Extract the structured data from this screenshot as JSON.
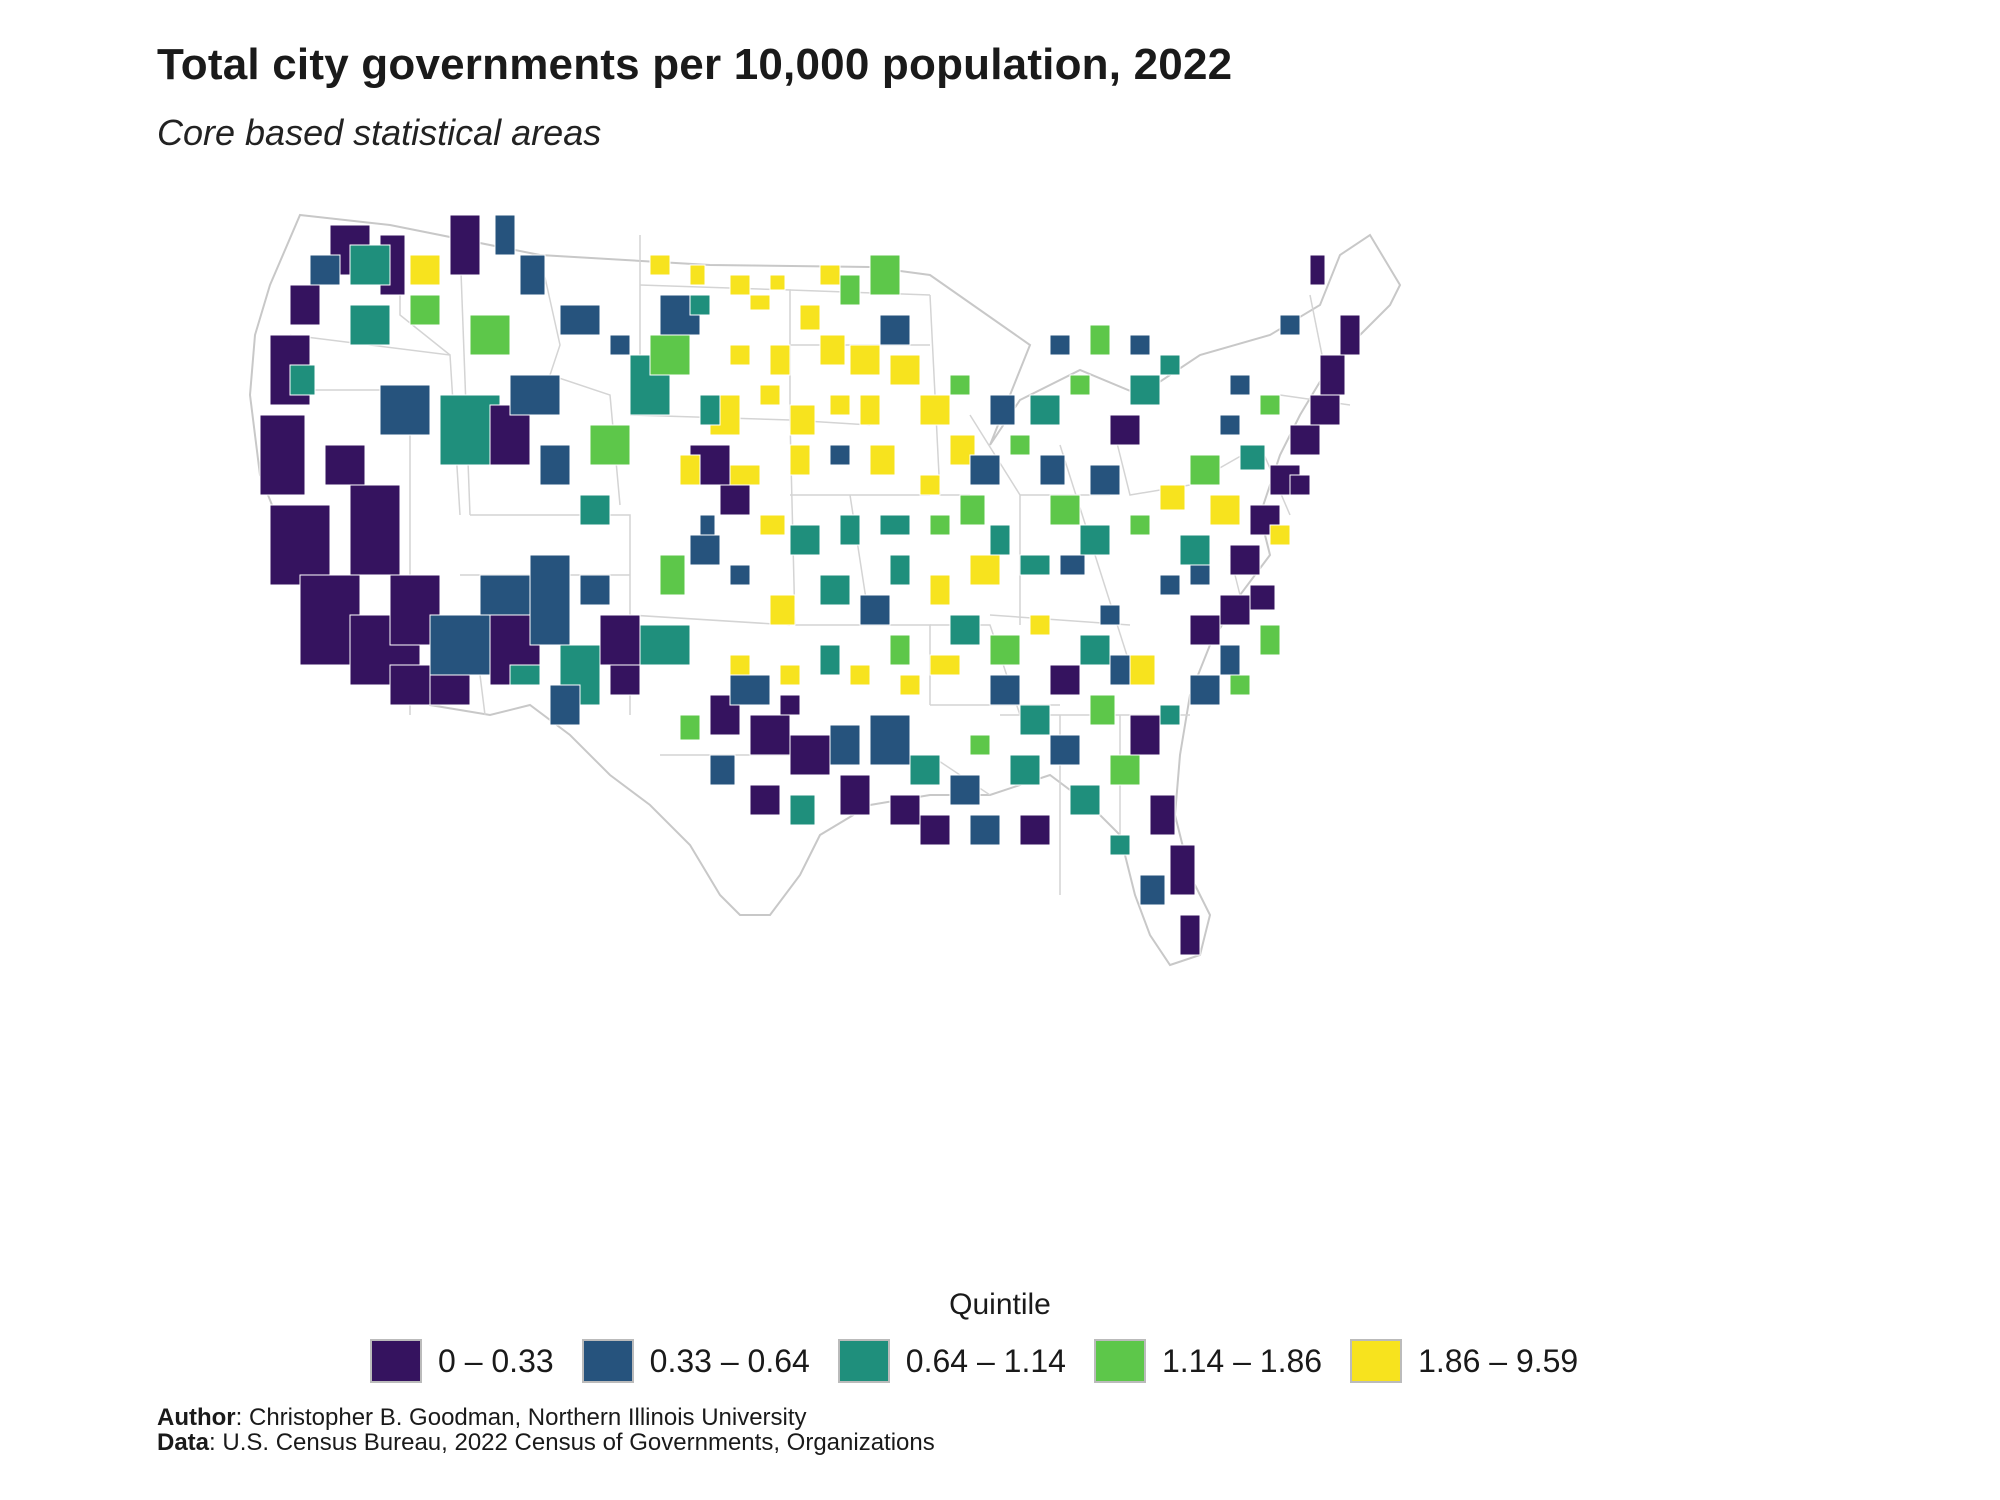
{
  "title": "Total city governments per 10,000 population, 2022",
  "subtitle": "Core based statistical areas",
  "legend": {
    "title": "Quintile",
    "items": [
      {
        "label": "0 – 0.33",
        "color": "#35135f"
      },
      {
        "label": "0.33 – 0.64",
        "color": "#26537d"
      },
      {
        "label": "0.64 – 1.14",
        "color": "#1f8f7c"
      },
      {
        "label": "1.14 – 1.86",
        "color": "#5dc74a"
      },
      {
        "label": "1.86 – 9.59",
        "color": "#f7e31e"
      }
    ]
  },
  "credits": {
    "author_label": "Author",
    "author_text": ": Christopher B. Goodman, Northern Illinois University",
    "data_label": "Data",
    "data_text": ": U.S. Census Bureau, 2022 Census of Governments, Organizations"
  },
  "map": {
    "region": "Contiguous United States",
    "unit": "Core based statistical areas",
    "state_border_color": "#c8c8c8",
    "no_data_color": "#ffffff"
  }
}
